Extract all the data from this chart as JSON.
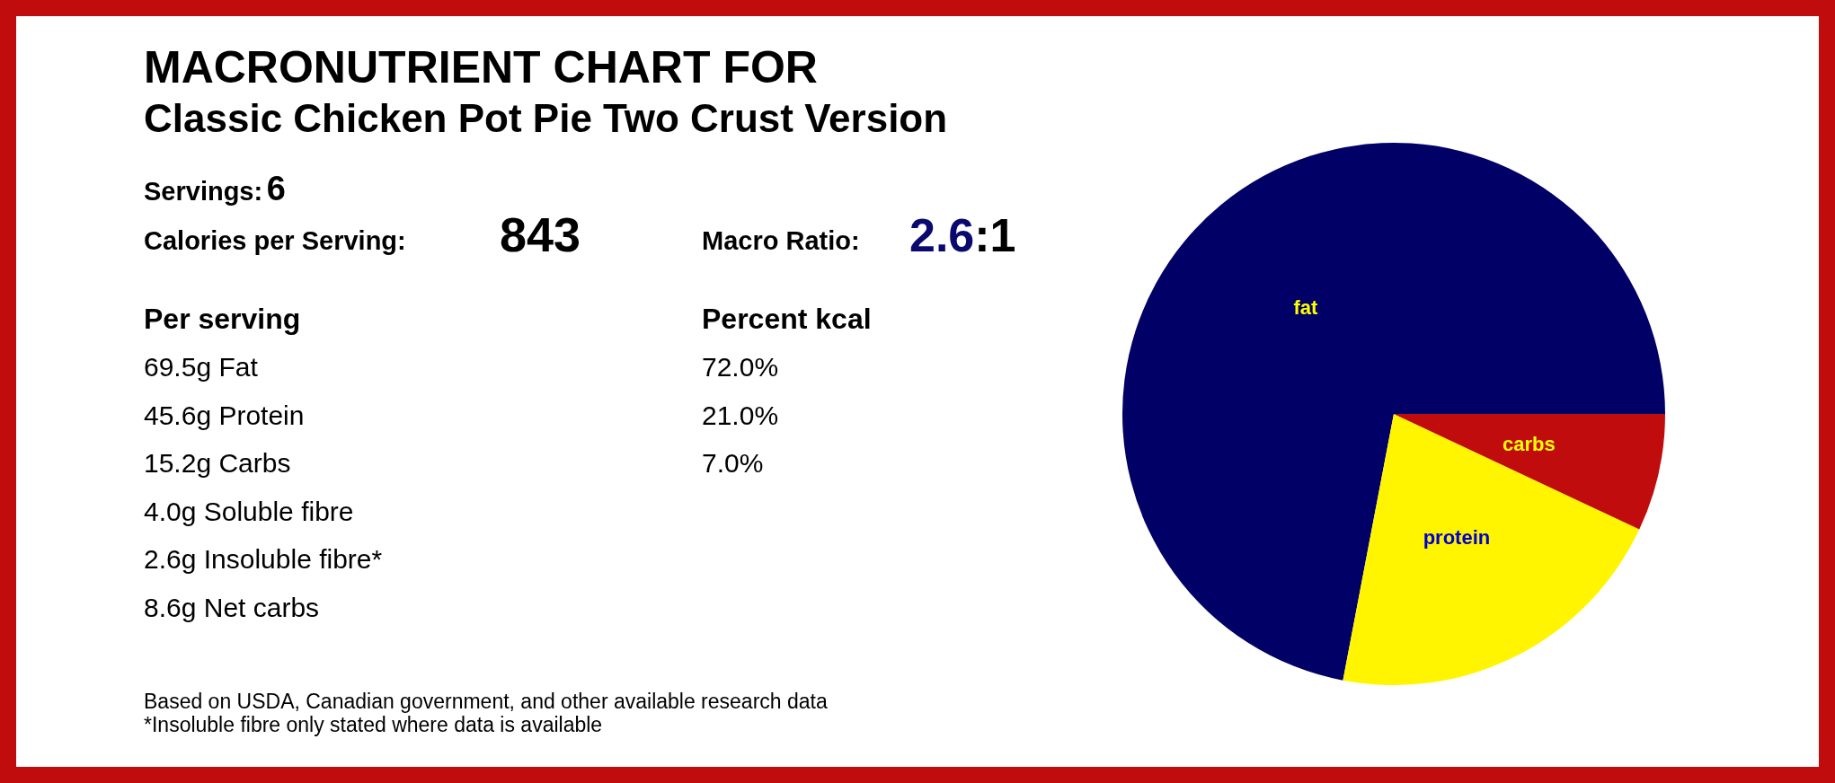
{
  "chart_data": {
    "type": "pie",
    "title": "MACRONUTRIENT CHART FOR",
    "subtitle": "Classic Chicken Pot Pie Two Crust Version",
    "categories": [
      "fat",
      "protein",
      "carbs"
    ],
    "values": [
      72,
      21,
      7
    ],
    "colors": [
      "#000066",
      "#fff500",
      "#c00c0c"
    ],
    "legend": false,
    "annotations": [
      "Servings:",
      "6",
      "Calories per Serving:",
      "843",
      "Macro Ratio:",
      "2.6",
      ":1",
      "Per serving",
      "69.5g Fat",
      "45.6g Protein",
      "15.2g Carbs",
      "4.0g Soluble fibre",
      "2.6g Insoluble fibre*",
      "8.6g Net carbs",
      "Percent kcal",
      "72.0%",
      "21.0%",
      "7.0%",
      "Based on USDA, Canadian government, and other available research data",
      "*Insoluble fibre only stated where data is available"
    ]
  }
}
